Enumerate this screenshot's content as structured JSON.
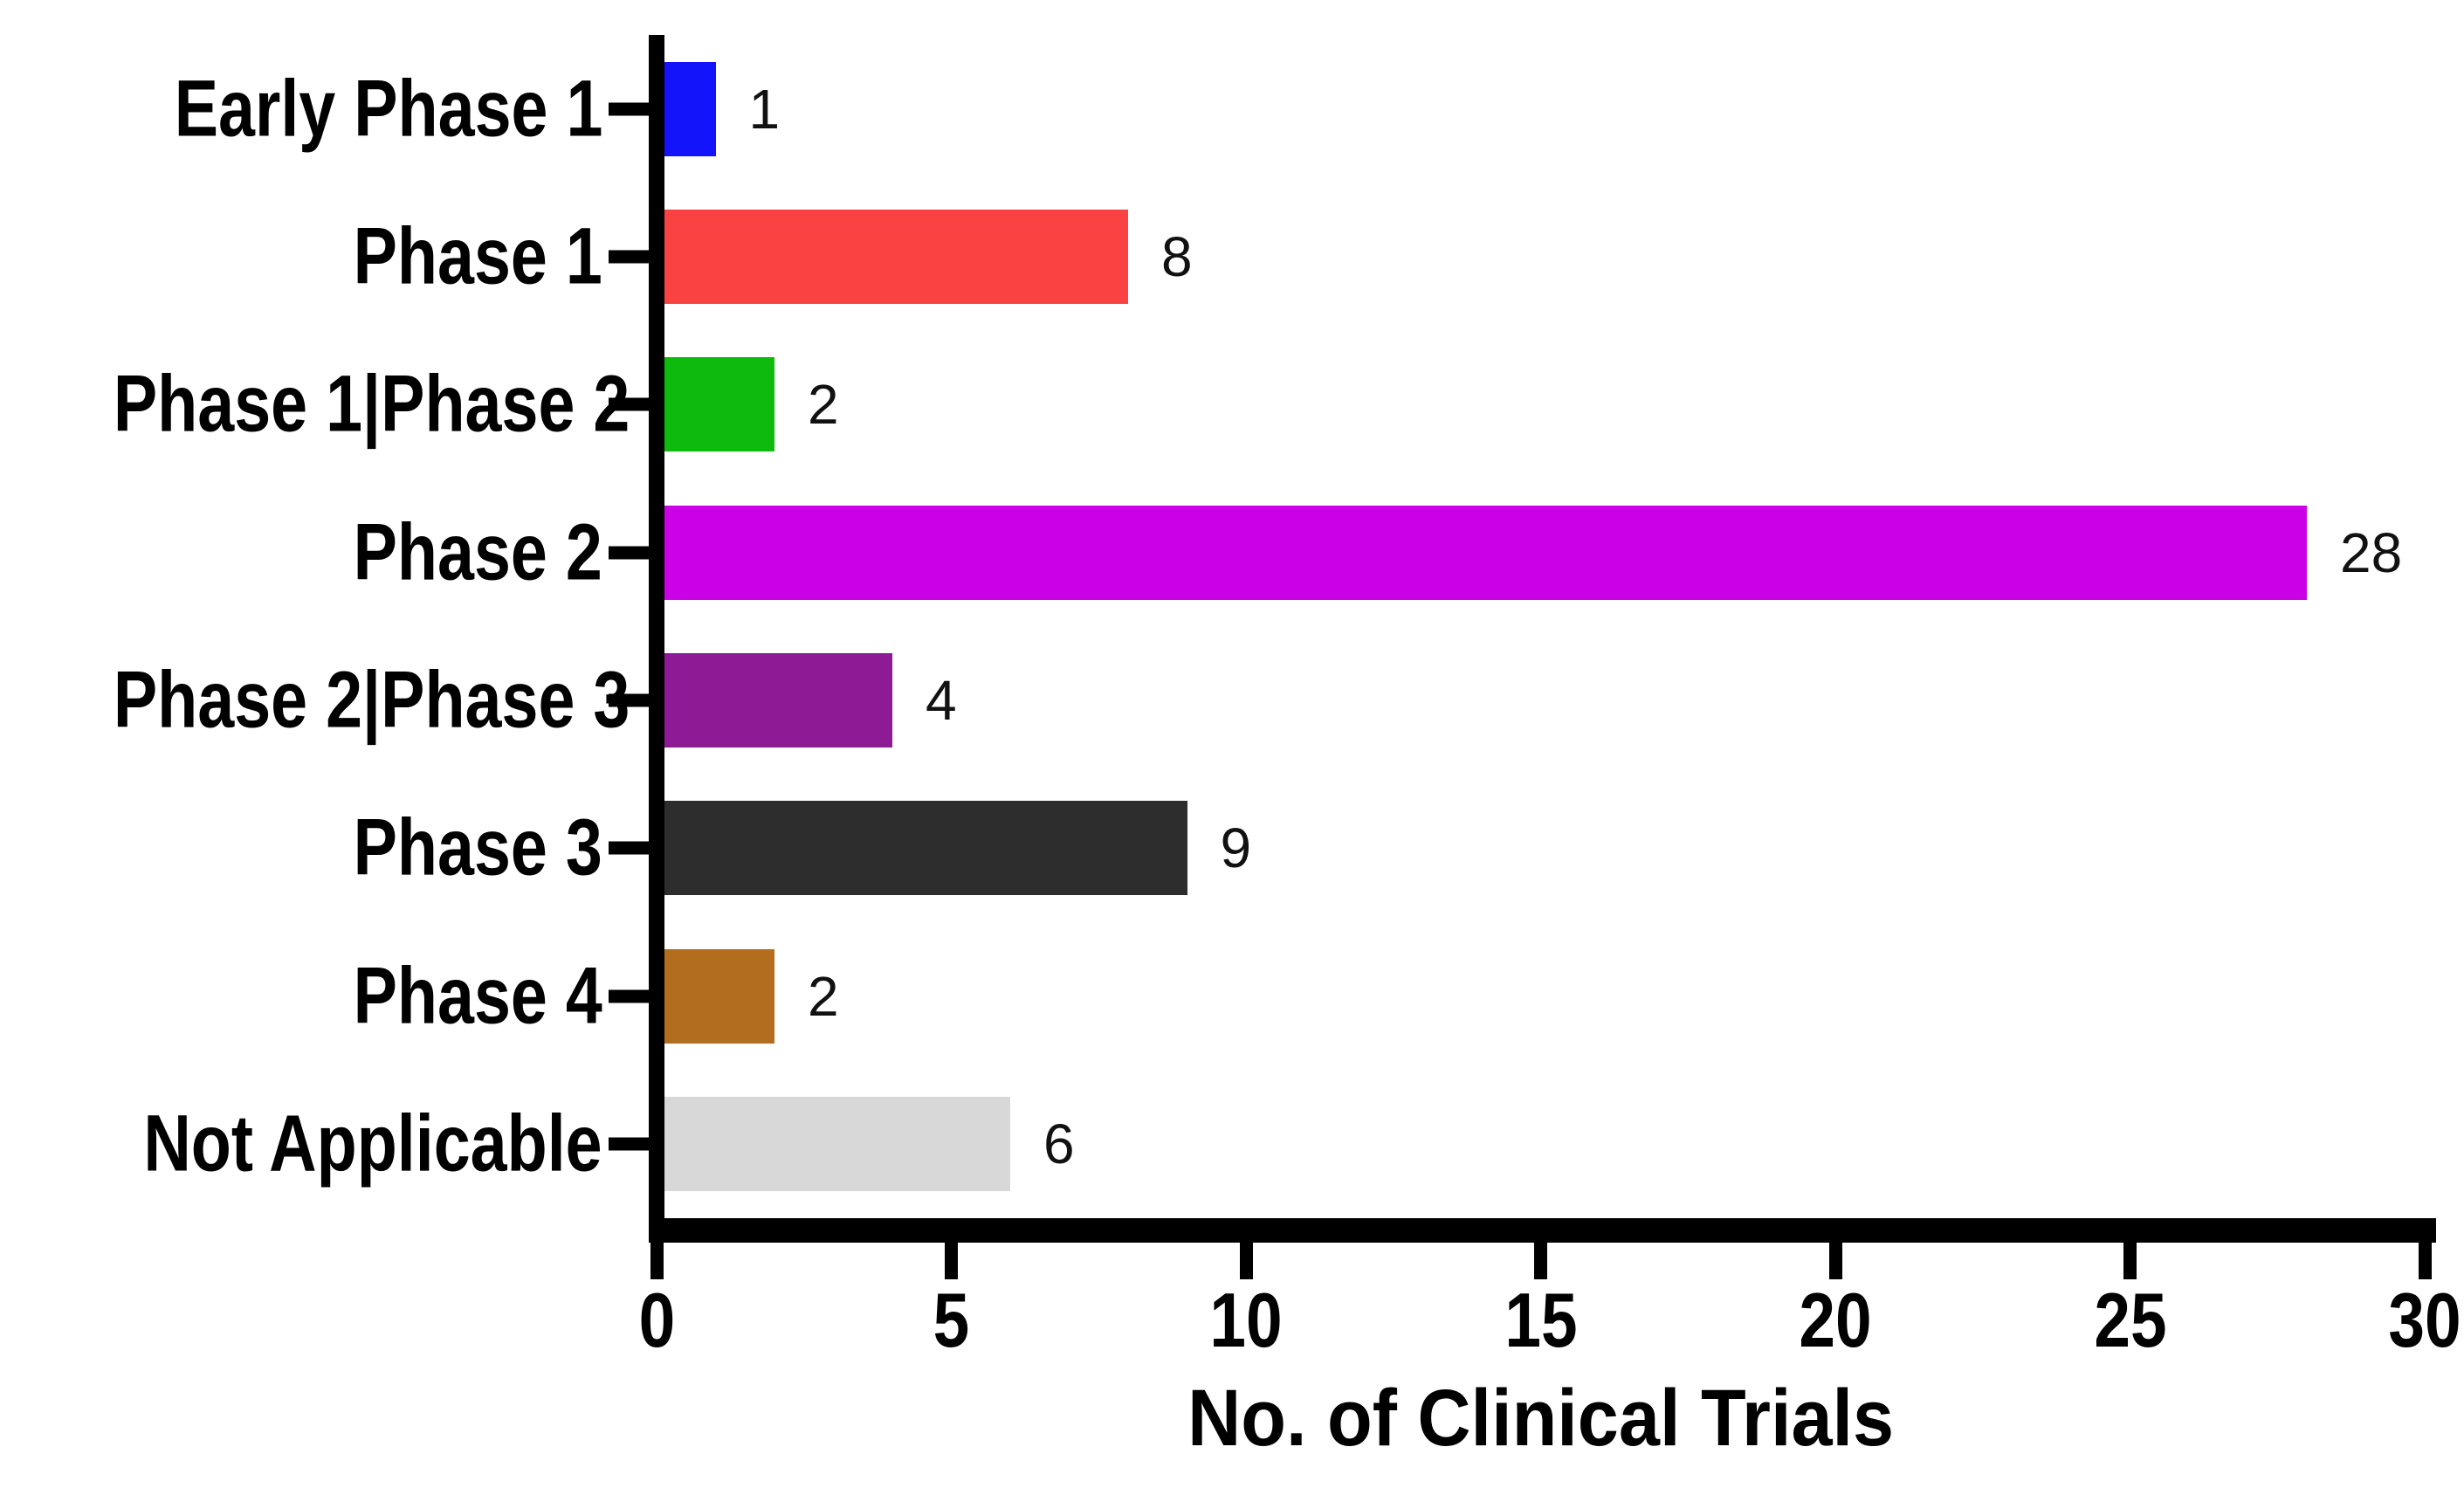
{
  "chart_data": {
    "type": "bar",
    "orientation": "horizontal",
    "title": "",
    "xlabel": "No. of Clinical Trials",
    "ylabel": "",
    "categories": [
      "Early Phase 1",
      "Phase 1",
      "Phase 1|Phase 2",
      "Phase 2",
      "Phase 2|Phase 3",
      "Phase 3",
      "Phase 4",
      "Not Applicable"
    ],
    "values": [
      1,
      8,
      2,
      28,
      4,
      9,
      2,
      6
    ],
    "value_labels": [
      "1",
      "8",
      "2",
      "28",
      "4",
      "9",
      "2",
      "6"
    ],
    "bar_colors": [
      "#1414FA",
      "#FA4242",
      "#0FBA0F",
      "#CC00E6",
      "#8E1A96",
      "#2D2D2D",
      "#B26D1E",
      "#D8D8D8"
    ],
    "xlim": [
      0,
      30
    ],
    "x_ticks": [
      0,
      5,
      10,
      15,
      20,
      25,
      30
    ],
    "x_tick_labels": [
      "0",
      "5",
      "10",
      "15",
      "20",
      "25",
      "30"
    ],
    "grid": false,
    "legend": null,
    "axis_color": "#000000",
    "background_color": "#FFFFFF"
  }
}
